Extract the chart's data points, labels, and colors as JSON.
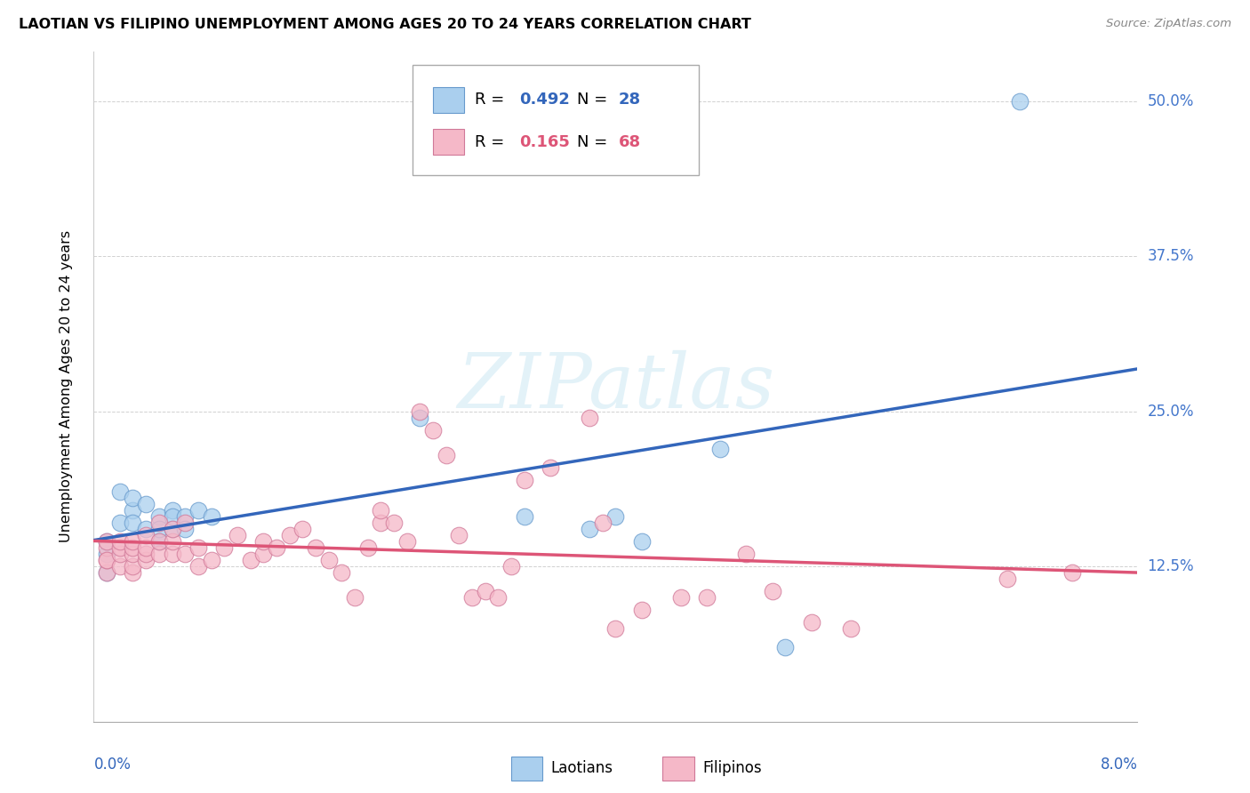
{
  "title": "LAOTIAN VS FILIPINO UNEMPLOYMENT AMONG AGES 20 TO 24 YEARS CORRELATION CHART",
  "source": "Source: ZipAtlas.com",
  "ylabel": "Unemployment Among Ages 20 to 24 years",
  "xmin": 0.0,
  "xmax": 0.08,
  "ymin": 0.0,
  "ymax": 0.54,
  "laotian_color": "#aacfee",
  "laotian_edge_color": "#6699cc",
  "filipino_color": "#f5b8c8",
  "filipino_edge_color": "#d07898",
  "laotian_line_color": "#3366bb",
  "filipino_line_color": "#dd5577",
  "right_tick_color": "#4477cc",
  "laotian_R": 0.492,
  "laotian_N": 28,
  "filipino_R": 0.165,
  "filipino_N": 68,
  "watermark_color": "#cce8f4",
  "legend_label_1": "Laotians",
  "legend_label_2": "Filipinos",
  "laotian_x": [
    0.001,
    0.001,
    0.001,
    0.002,
    0.002,
    0.003,
    0.003,
    0.003,
    0.004,
    0.004,
    0.005,
    0.005,
    0.005,
    0.006,
    0.006,
    0.006,
    0.007,
    0.007,
    0.008,
    0.009,
    0.025,
    0.033,
    0.038,
    0.04,
    0.042,
    0.048,
    0.053,
    0.071
  ],
  "laotian_y": [
    0.12,
    0.135,
    0.145,
    0.16,
    0.185,
    0.17,
    0.18,
    0.16,
    0.175,
    0.155,
    0.165,
    0.145,
    0.155,
    0.17,
    0.155,
    0.165,
    0.165,
    0.155,
    0.17,
    0.165,
    0.245,
    0.165,
    0.155,
    0.165,
    0.145,
    0.22,
    0.06,
    0.5
  ],
  "filipino_x": [
    0.001,
    0.001,
    0.001,
    0.001,
    0.001,
    0.002,
    0.002,
    0.002,
    0.002,
    0.003,
    0.003,
    0.003,
    0.003,
    0.003,
    0.004,
    0.004,
    0.004,
    0.004,
    0.005,
    0.005,
    0.005,
    0.006,
    0.006,
    0.006,
    0.007,
    0.007,
    0.008,
    0.008,
    0.009,
    0.01,
    0.011,
    0.012,
    0.013,
    0.013,
    0.014,
    0.015,
    0.016,
    0.017,
    0.018,
    0.019,
    0.02,
    0.021,
    0.022,
    0.022,
    0.023,
    0.024,
    0.025,
    0.026,
    0.027,
    0.028,
    0.029,
    0.03,
    0.031,
    0.032,
    0.033,
    0.035,
    0.038,
    0.039,
    0.04,
    0.042,
    0.045,
    0.047,
    0.05,
    0.052,
    0.055,
    0.058,
    0.07,
    0.075
  ],
  "filipino_y": [
    0.12,
    0.13,
    0.14,
    0.145,
    0.13,
    0.125,
    0.135,
    0.14,
    0.145,
    0.12,
    0.125,
    0.135,
    0.14,
    0.145,
    0.13,
    0.135,
    0.14,
    0.15,
    0.135,
    0.145,
    0.16,
    0.135,
    0.145,
    0.155,
    0.135,
    0.16,
    0.125,
    0.14,
    0.13,
    0.14,
    0.15,
    0.13,
    0.135,
    0.145,
    0.14,
    0.15,
    0.155,
    0.14,
    0.13,
    0.12,
    0.1,
    0.14,
    0.16,
    0.17,
    0.16,
    0.145,
    0.25,
    0.235,
    0.215,
    0.15,
    0.1,
    0.105,
    0.1,
    0.125,
    0.195,
    0.205,
    0.245,
    0.16,
    0.075,
    0.09,
    0.1,
    0.1,
    0.135,
    0.105,
    0.08,
    0.075,
    0.115,
    0.12
  ]
}
